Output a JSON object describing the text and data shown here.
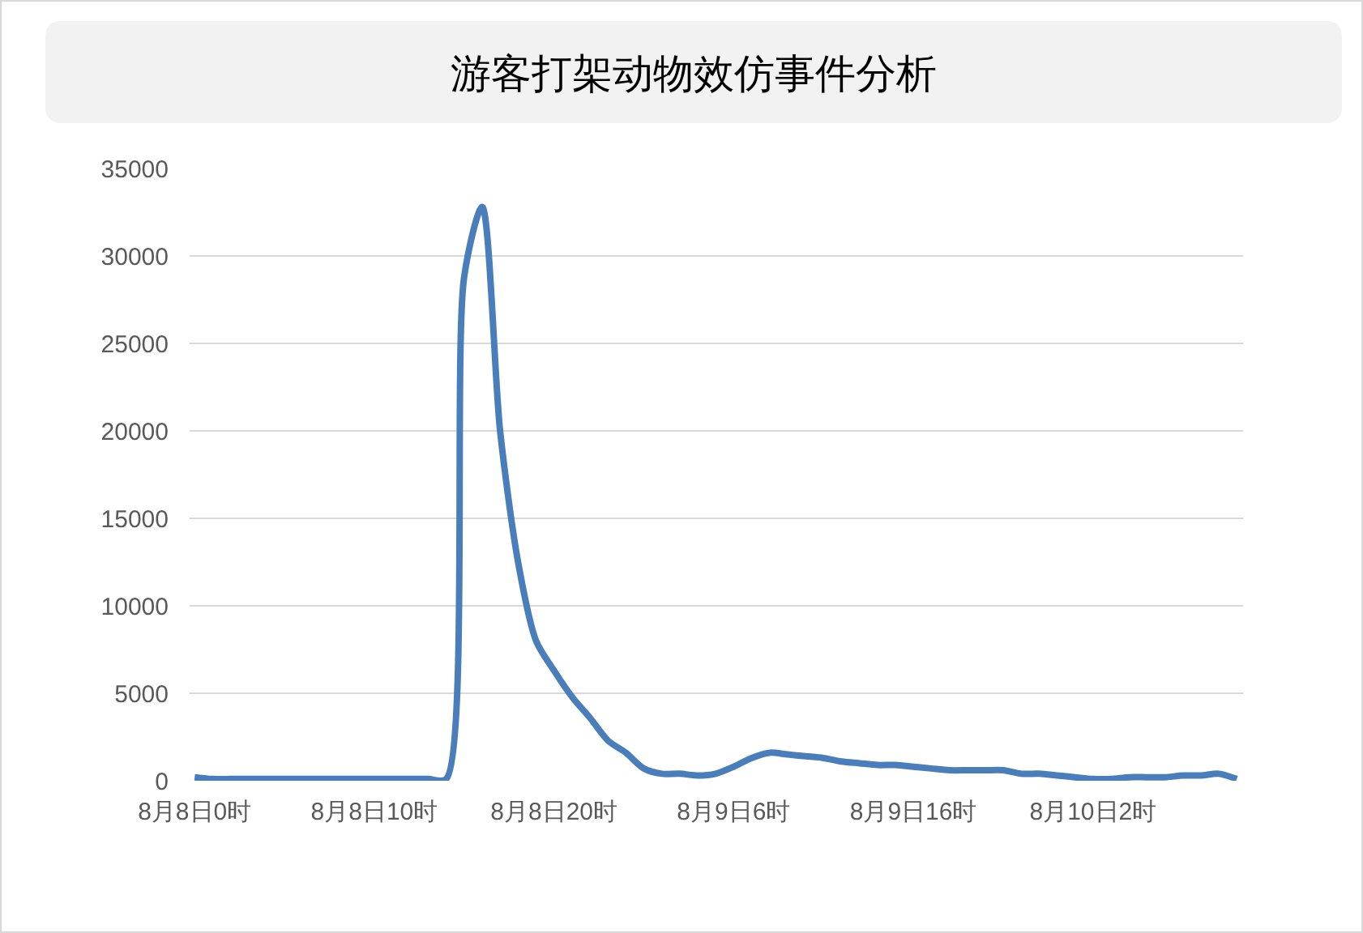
{
  "chart_data": {
    "type": "line",
    "title": "游客打架动物效仿事件分析",
    "categories": [
      "8月8日0时",
      null,
      null,
      null,
      null,
      null,
      null,
      null,
      null,
      null,
      "8月8日10时",
      null,
      null,
      null,
      null,
      null,
      null,
      null,
      null,
      null,
      "8月8日20时",
      null,
      null,
      null,
      null,
      null,
      null,
      null,
      null,
      null,
      "8月9日6时",
      null,
      null,
      null,
      null,
      null,
      null,
      null,
      null,
      null,
      "8月9日16时",
      null,
      null,
      null,
      null,
      null,
      null,
      null,
      null,
      null,
      "8月10日2时",
      null,
      null,
      null,
      null,
      null,
      null,
      null,
      null
    ],
    "values": [
      200,
      100,
      100,
      100,
      100,
      100,
      100,
      100,
      100,
      100,
      100,
      100,
      100,
      100,
      100,
      28800,
      32800,
      20000,
      12500,
      8000,
      6300,
      4800,
      3600,
      2300,
      1600,
      700,
      400,
      400,
      300,
      400,
      800,
      1300,
      1600,
      1500,
      1400,
      1300,
      1100,
      1000,
      900,
      900,
      800,
      700,
      600,
      600,
      600,
      600,
      400,
      400,
      300,
      200,
      100,
      100,
      200,
      200,
      200,
      300,
      300,
      400,
      100
    ],
    "color": "#4a7ebb",
    "ylim": [
      0,
      35000
    ],
    "yticks": [
      0,
      5000,
      10000,
      15000,
      20000,
      25000,
      30000,
      35000
    ],
    "grid": "y",
    "legend": false,
    "line_style": "solid"
  }
}
